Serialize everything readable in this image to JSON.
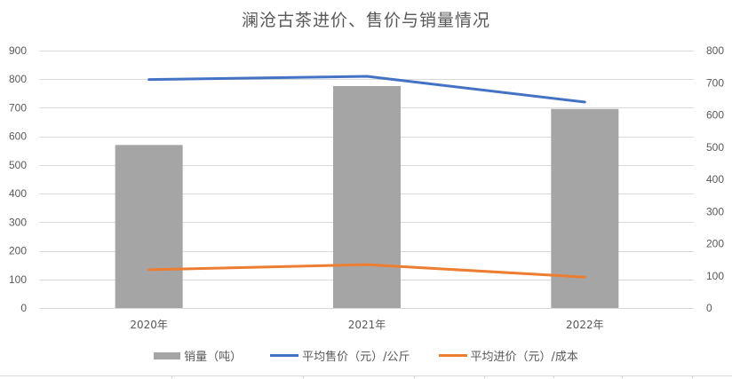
{
  "chart_data": {
    "type": "bar",
    "title": "澜沧古茶进价、售价与销量情况",
    "categories": [
      "2020年",
      "2021年",
      "2022年"
    ],
    "series": [
      {
        "name": "销量（吨）",
        "type": "bar",
        "axis": "primary",
        "color": "#a5a5a5",
        "values": [
          570,
          776,
          696
        ]
      },
      {
        "name": "平均售价（元）/公斤",
        "type": "line",
        "axis": "secondary",
        "color": "#4472c4",
        "values": [
          710,
          720,
          640
        ]
      },
      {
        "name": "平均进价（元）/成本",
        "type": "line",
        "axis": "secondary",
        "color": "#ed7d31",
        "values": [
          119,
          135,
          96
        ]
      }
    ],
    "xlabel": "",
    "ylabel": "",
    "ylim": [
      0,
      900
    ],
    "yticks": [
      0,
      100,
      200,
      300,
      400,
      500,
      600,
      700,
      800,
      900
    ],
    "y2lim": [
      0,
      800
    ],
    "y2ticks": [
      0,
      100,
      200,
      300,
      400,
      500,
      600,
      700,
      800
    ],
    "grid": true,
    "legend_position": "bottom"
  },
  "colors": {
    "gridline": "#d9d9d9",
    "text": "#595959"
  }
}
